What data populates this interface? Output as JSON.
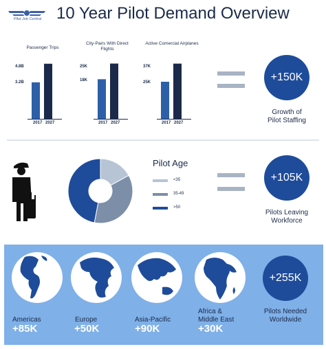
{
  "brand": {
    "logo_text": "Pilot Job Central"
  },
  "title": "10 Year Pilot Demand Overview",
  "colors": {
    "accent": "#1e4c9a",
    "dark": "#1b2a4a",
    "mid": "#2d5fa8",
    "grey": "#a8b4c4",
    "band": "#7fb0e8"
  },
  "chart_data": [
    {
      "type": "bar",
      "title": "Passenger Trips",
      "categories": [
        "2017",
        "2027"
      ],
      "values": [
        3.2,
        4.8
      ],
      "value_labels": [
        "3.2B",
        "4.8B"
      ],
      "ylim": [
        0,
        5.2
      ]
    },
    {
      "type": "bar",
      "title": "City-Pairs With Direct Flights",
      "categories": [
        "2017",
        "2027"
      ],
      "values": [
        18,
        25
      ],
      "value_labels": [
        "18K",
        "25K"
      ],
      "ylim": [
        0,
        27
      ]
    },
    {
      "type": "bar",
      "title": "Active Comercial Airplanes",
      "categories": [
        "2017",
        "2027"
      ],
      "values": [
        25,
        37
      ],
      "value_labels": [
        "25K",
        "37K"
      ],
      "ylim": [
        0,
        40
      ]
    },
    {
      "type": "pie",
      "title": "Pilot Age",
      "categories": [
        "<35",
        "35-49",
        ">50"
      ],
      "values": [
        17,
        36,
        47
      ],
      "colors": [
        "#b7c4d6",
        "#7d8ea8",
        "#1e4c9a"
      ]
    }
  ],
  "top_summary": {
    "value": "+150K",
    "caption_line1": "Growth of",
    "caption_line2": "Pilot Staffing"
  },
  "mid_summary": {
    "value": "+105K",
    "caption_line1": "Pilots Leaving",
    "caption_line2": "Workforce"
  },
  "regions": [
    {
      "name_line1": "Americas",
      "name_line2": "",
      "value": "+85K"
    },
    {
      "name_line1": "Europe",
      "name_line2": "",
      "value": "+50K"
    },
    {
      "name_line1": "Asia-Pacific",
      "name_line2": "",
      "value": "+90K"
    },
    {
      "name_line1": "Africa &",
      "name_line2": "Middle East",
      "value": "+30K"
    }
  ],
  "bottom_summary": {
    "value": "+255K",
    "caption_line1": "Pilots Needed",
    "caption_line2": "Worldwide"
  }
}
